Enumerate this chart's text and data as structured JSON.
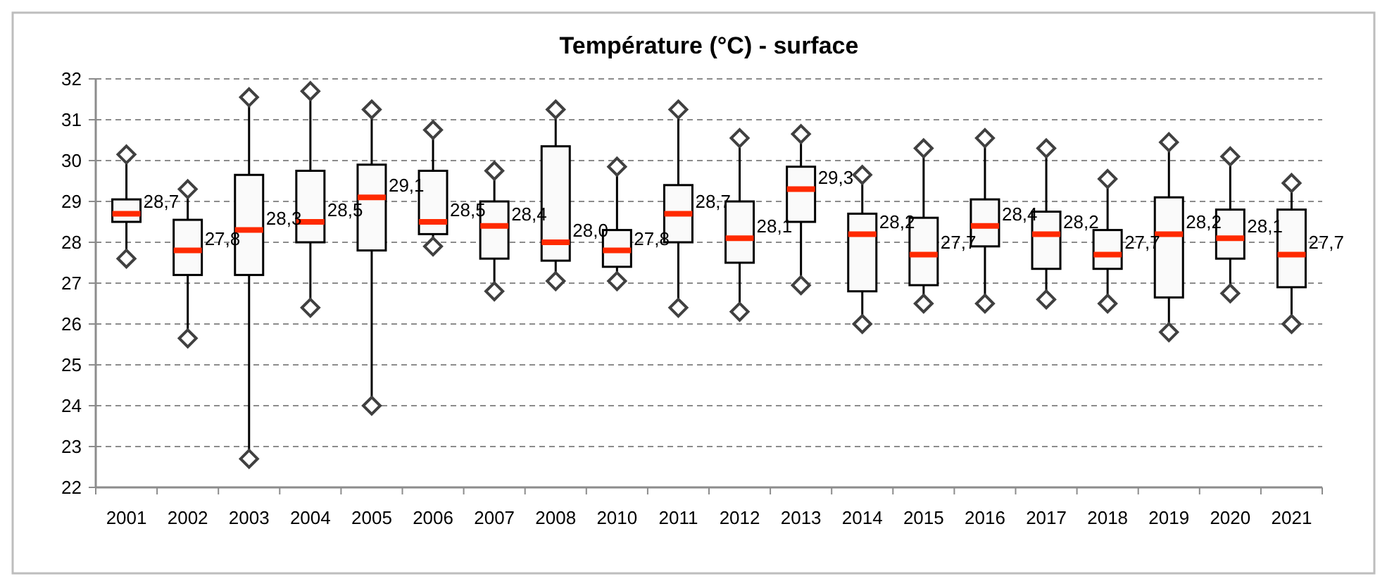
{
  "chart_data": {
    "type": "box",
    "title": "Température (°C) - surface",
    "categories": [
      "2001",
      "2002",
      "2003",
      "2004",
      "2005",
      "2006",
      "2007",
      "2008",
      "2010",
      "2011",
      "2012",
      "2013",
      "2014",
      "2015",
      "2016",
      "2017",
      "2018",
      "2019",
      "2020",
      "2021"
    ],
    "boxes": [
      {
        "low": 27.6,
        "q1": 28.5,
        "median": 28.7,
        "q3": 29.05,
        "high": 30.15
      },
      {
        "low": 25.65,
        "q1": 27.2,
        "median": 27.8,
        "q3": 28.55,
        "high": 29.3
      },
      {
        "low": 22.7,
        "q1": 27.2,
        "median": 28.3,
        "q3": 29.65,
        "high": 31.55
      },
      {
        "low": 26.4,
        "q1": 28.0,
        "median": 28.5,
        "q3": 29.75,
        "high": 31.7
      },
      {
        "low": 24.0,
        "q1": 27.8,
        "median": 29.1,
        "q3": 29.9,
        "high": 31.25
      },
      {
        "low": 27.9,
        "q1": 28.2,
        "median": 28.5,
        "q3": 29.75,
        "high": 30.75
      },
      {
        "low": 26.8,
        "q1": 27.6,
        "median": 28.4,
        "q3": 29.0,
        "high": 29.75
      },
      {
        "low": 27.05,
        "q1": 27.55,
        "median": 28.0,
        "q3": 30.35,
        "high": 31.25
      },
      {
        "low": 27.05,
        "q1": 27.4,
        "median": 27.8,
        "q3": 28.3,
        "high": 29.85
      },
      {
        "low": 26.4,
        "q1": 28.0,
        "median": 28.7,
        "q3": 29.4,
        "high": 31.25
      },
      {
        "low": 26.3,
        "q1": 27.5,
        "median": 28.1,
        "q3": 29.0,
        "high": 30.55
      },
      {
        "low": 26.95,
        "q1": 28.5,
        "median": 29.3,
        "q3": 29.85,
        "high": 30.65
      },
      {
        "low": 26.0,
        "q1": 26.8,
        "median": 28.2,
        "q3": 28.7,
        "high": 29.65
      },
      {
        "low": 26.5,
        "q1": 26.95,
        "median": 27.7,
        "q3": 28.6,
        "high": 30.3
      },
      {
        "low": 26.5,
        "q1": 27.9,
        "median": 28.4,
        "q3": 29.05,
        "high": 30.55
      },
      {
        "low": 26.6,
        "q1": 27.35,
        "median": 28.2,
        "q3": 28.75,
        "high": 30.3
      },
      {
        "low": 26.5,
        "q1": 27.35,
        "median": 27.7,
        "q3": 28.3,
        "high": 29.55
      },
      {
        "low": 25.8,
        "q1": 26.65,
        "median": 28.2,
        "q3": 29.1,
        "high": 30.45
      },
      {
        "low": 26.75,
        "q1": 27.6,
        "median": 28.1,
        "q3": 28.8,
        "high": 30.1
      },
      {
        "low": 26.0,
        "q1": 26.9,
        "median": 27.7,
        "q3": 28.8,
        "high": 29.45
      }
    ],
    "annotations": [
      {
        "text": "28,7",
        "x": "2001",
        "y": 28.7
      },
      {
        "text": "27,8",
        "x": "2002",
        "y": 27.8
      },
      {
        "text": "28,3",
        "x": "2003",
        "y": 28.3
      },
      {
        "text": "28,5",
        "x": "2004",
        "y": 28.5
      },
      {
        "text": "29,1",
        "x": "2005",
        "y": 29.1
      },
      {
        "text": "28,5",
        "x": "2006",
        "y": 28.5
      },
      {
        "text": "28,4",
        "x": "2007",
        "y": 28.4
      },
      {
        "text": "28,0",
        "x": "2008",
        "y": 28.0
      },
      {
        "text": "27,8",
        "x": "2010",
        "y": 27.8
      },
      {
        "text": "28,7",
        "x": "2011",
        "y": 28.7
      },
      {
        "text": "28,1",
        "x": "2012",
        "y": 28.1
      },
      {
        "text": "29,3",
        "x": "2013",
        "y": 29.3
      },
      {
        "text": "28,2",
        "x": "2014",
        "y": 28.2
      },
      {
        "text": "27,7",
        "x": "2015",
        "y": 27.7
      },
      {
        "text": "28,4",
        "x": "2016",
        "y": 28.4
      },
      {
        "text": "28,2",
        "x": "2017",
        "y": 28.2
      },
      {
        "text": "27,7",
        "x": "2018",
        "y": 27.7
      },
      {
        "text": "28,2",
        "x": "2019",
        "y": 28.2
      },
      {
        "text": "28,1",
        "x": "2020",
        "y": 28.1
      },
      {
        "text": "27,7",
        "x": "2021",
        "y": 27.7
      }
    ],
    "ylim": [
      22,
      32
    ],
    "yticks": [
      22,
      23,
      24,
      25,
      26,
      27,
      28,
      29,
      30,
      31,
      32
    ],
    "grid": "y",
    "marker": "diamond"
  }
}
